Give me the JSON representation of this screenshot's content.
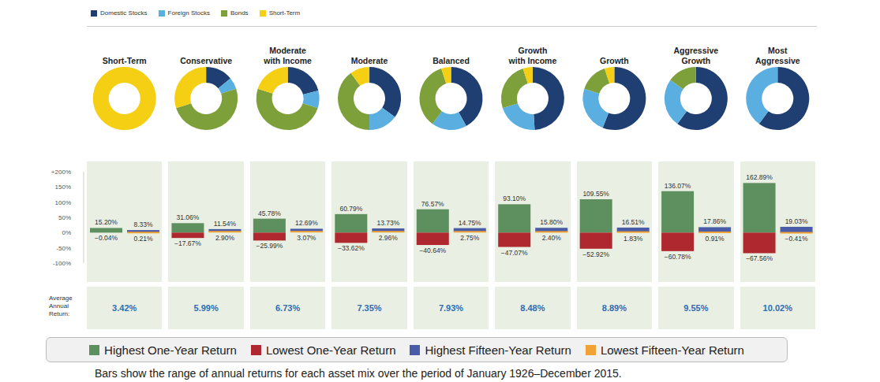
{
  "chart_data": {
    "type": "bar",
    "categories": [
      "Short-Term",
      "Conservative",
      "Moderate\nwith Income",
      "Moderate",
      "Balanced",
      "Growth\nwith Income",
      "Growth",
      "Aggressive\nGrowth",
      "Most\nAggressive"
    ],
    "ylim": [
      -100,
      200
    ],
    "yticks": [
      {
        "value": -100,
        "label": "-100%"
      },
      {
        "value": -50,
        "label": "-50%"
      },
      {
        "value": 0,
        "label": "0%"
      },
      {
        "value": 50,
        "label": "50%"
      },
      {
        "value": 100,
        "label": "100%"
      },
      {
        "value": 150,
        "label": "150%"
      },
      {
        "value": 200,
        "label": "+200%"
      }
    ],
    "stacked": true,
    "data_labels": true,
    "legend": "bottom",
    "series": [
      {
        "name": "Highest One-Year Return",
        "color": "#5e8f5f",
        "values": [
          15.2,
          31.06,
          45.78,
          60.79,
          76.57,
          93.1,
          109.55,
          136.07,
          162.89
        ],
        "value_labels": [
          "15.20%",
          "31.06%",
          "45.78%",
          "60.79%",
          "76.57%",
          "93.10%",
          "109.55%",
          "136.07%",
          "162.89%"
        ]
      },
      {
        "name": "Lowest One-Year Return",
        "color": "#b0282f",
        "values": [
          -0.04,
          -17.67,
          -25.99,
          -33.62,
          -40.64,
          -47.07,
          -52.92,
          -60.78,
          -67.56
        ],
        "value_labels": [
          "−0.04%",
          "−17.67%",
          "−25.99%",
          "−33.62%",
          "−40.64%",
          "−47.07%",
          "−52.92%",
          "−60.78%",
          "−67.56%"
        ]
      },
      {
        "name": "Highest Fifteen-Year Return",
        "color": "#4a5ba8",
        "values": [
          8.33,
          11.54,
          12.69,
          13.73,
          14.75,
          15.8,
          16.51,
          17.86,
          19.03
        ],
        "value_labels": [
          "8.33%",
          "11.54%",
          "12.69%",
          "13.73%",
          "14.75%",
          "15.80%",
          "16.51%",
          "17.86%",
          "19.03%"
        ]
      },
      {
        "name": "Lowest Fifteen-Year Return",
        "color": "#f0a334",
        "values": [
          0.21,
          2.9,
          3.07,
          2.96,
          2.75,
          2.4,
          1.83,
          0.91,
          -0.41
        ],
        "value_labels": [
          "0.21%",
          "2.90%",
          "3.07%",
          "2.96%",
          "2.75%",
          "2.40%",
          "1.83%",
          "0.91%",
          "−0.41%"
        ]
      }
    ],
    "average_annual_return": {
      "label": "Average\nAnnual\nReturn:",
      "values": [
        3.42,
        5.99,
        6.73,
        7.35,
        7.93,
        8.48,
        8.89,
        9.55,
        10.02
      ],
      "value_labels": [
        "3.42%",
        "5.99%",
        "6.73%",
        "7.35%",
        "7.93%",
        "8.48%",
        "8.89%",
        "9.55%",
        "10.02%"
      ]
    },
    "note": "Bars show the range of annual returns for each asset mix over the period of January 1926–December 2015.",
    "allocation": {
      "type": "pie",
      "legend": "top",
      "categories": [
        "Domestic Stocks",
        "Foreign Stocks",
        "Bonds",
        "Short-Term"
      ],
      "colors": [
        "#1f3f73",
        "#5aaee0",
        "#7ea03a",
        "#f5cf14"
      ],
      "values": [
        [
          0,
          0,
          0,
          100
        ],
        [
          14,
          6,
          50,
          30
        ],
        [
          21,
          9,
          50,
          20
        ],
        [
          35,
          15,
          40,
          10
        ],
        [
          42,
          18,
          35,
          5
        ],
        [
          49,
          21,
          25,
          5
        ],
        [
          56,
          24,
          15,
          5
        ],
        [
          60,
          25,
          15,
          0
        ],
        [
          60,
          40,
          0,
          0
        ]
      ]
    }
  }
}
